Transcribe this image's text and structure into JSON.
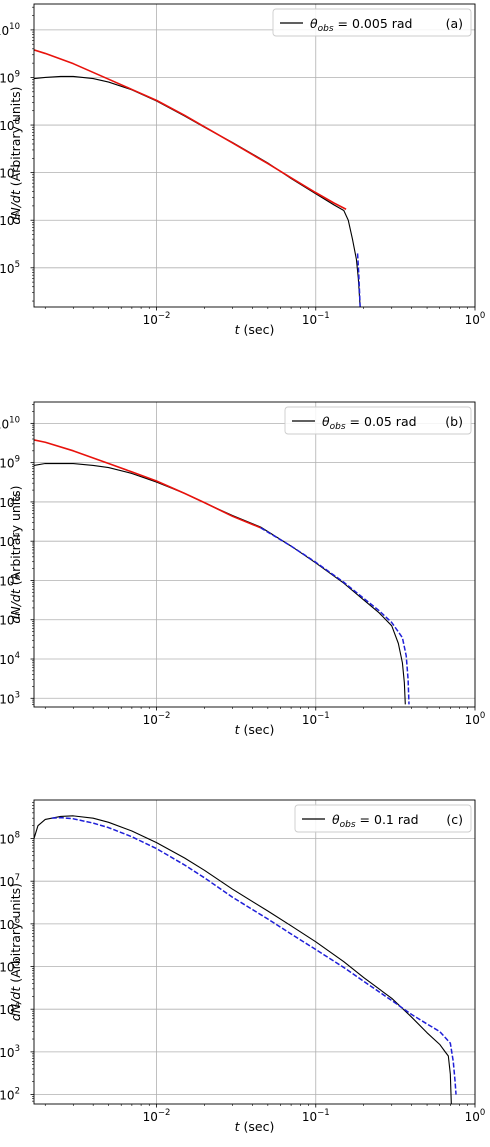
{
  "figure": {
    "panels": [
      {
        "legend_symbol": "θ",
        "legend_sub": "obs",
        "legend_value": " = 0.005 rad",
        "panel_label": "(a)"
      },
      {
        "legend_symbol": "θ",
        "legend_sub": "obs",
        "legend_value": " = 0.05 rad",
        "panel_label": "(b)"
      },
      {
        "legend_symbol": "θ",
        "legend_sub": "obs",
        "legend_value": " = 0.1 rad",
        "panel_label": "(c)"
      }
    ]
  },
  "chart_data": [
    {
      "type": "line",
      "panel": "(a)",
      "xlabel_var": "t",
      "xlabel_unit": " (sec)",
      "ylabel_var": "dN/dt",
      "ylabel_unit": " (Arbitrary units)",
      "xscale": "log",
      "yscale": "log",
      "xlim": [
        0.0017,
        1.0
      ],
      "ylim": [
        15000,
        35000000000.0
      ],
      "x_ticks": [
        {
          "value": 0.01,
          "base": "10",
          "exp": "−2"
        },
        {
          "value": 0.1,
          "base": "10",
          "exp": "−1"
        },
        {
          "value": 1.0,
          "base": "10",
          "exp": "0"
        }
      ],
      "y_ticks": [
        {
          "value": 100000.0,
          "base": "10",
          "exp": "5"
        },
        {
          "value": 1000000.0,
          "base": "10",
          "exp": "6"
        },
        {
          "value": 10000000.0,
          "base": "10",
          "exp": "7"
        },
        {
          "value": 100000000.0,
          "base": "10",
          "exp": "8"
        },
        {
          "value": 1000000000.0,
          "base": "10",
          "exp": "9"
        },
        {
          "value": 10000000000.0,
          "base": "10",
          "exp": "10"
        }
      ],
      "grid": true,
      "legend_position": "top-right",
      "series": [
        {
          "color": "#000000",
          "style": "solid",
          "x": [
            0.0017,
            0.002,
            0.0025,
            0.003,
            0.004,
            0.005,
            0.007,
            0.01,
            0.015,
            0.02,
            0.03,
            0.05,
            0.07,
            0.1,
            0.13,
            0.15,
            0.16,
            0.17,
            0.18,
            0.185,
            0.19
          ],
          "y": [
            950000000.0,
            1000000000.0,
            1050000000.0,
            1050000000.0,
            950000000.0,
            800000000.0,
            550000000.0,
            320000000.0,
            155000000.0,
            90000000.0,
            43000000.0,
            16000000.0,
            7500000.0,
            3600000.0,
            2100000.0,
            1600000.0,
            1000000.0,
            400000.0,
            150000.0,
            60000.0,
            15000.0
          ]
        },
        {
          "color": "#e8120c",
          "style": "solid",
          "x": [
            0.0017,
            0.002,
            0.003,
            0.005,
            0.007,
            0.01,
            0.015,
            0.02,
            0.03,
            0.05,
            0.07,
            0.1,
            0.13,
            0.155
          ],
          "y": [
            3800000000.0,
            3200000000.0,
            1950000000.0,
            920000000.0,
            560000000.0,
            330000000.0,
            160000000.0,
            92000000.0,
            42000000.0,
            15500000.0,
            7800000.0,
            3800000.0,
            2300000.0,
            1700000.0
          ]
        },
        {
          "color": "#1f1fd8",
          "style": "dashed",
          "x": [
            0.183,
            0.186,
            0.188,
            0.19
          ],
          "y": [
            200000.0,
            80000.0,
            35000.0,
            15000.0
          ]
        }
      ]
    },
    {
      "type": "line",
      "panel": "(b)",
      "xlabel_var": "t",
      "xlabel_unit": " (sec)",
      "ylabel_var": "dN/dt",
      "ylabel_unit": " (Arbitrary units)",
      "xscale": "log",
      "yscale": "log",
      "xlim": [
        0.0017,
        1.0
      ],
      "ylim": [
        600,
        35000000000.0
      ],
      "x_ticks": [
        {
          "value": 0.01,
          "base": "10",
          "exp": "−2"
        },
        {
          "value": 0.1,
          "base": "10",
          "exp": "−1"
        },
        {
          "value": 1.0,
          "base": "10",
          "exp": "0"
        }
      ],
      "y_ticks": [
        {
          "value": 1000.0,
          "base": "10",
          "exp": "3"
        },
        {
          "value": 10000.0,
          "base": "10",
          "exp": "4"
        },
        {
          "value": 100000.0,
          "base": "10",
          "exp": "5"
        },
        {
          "value": 1000000.0,
          "base": "10",
          "exp": "6"
        },
        {
          "value": 10000000.0,
          "base": "10",
          "exp": "7"
        },
        {
          "value": 100000000.0,
          "base": "10",
          "exp": "8"
        },
        {
          "value": 1000000000.0,
          "base": "10",
          "exp": "9"
        },
        {
          "value": 10000000000.0,
          "base": "10",
          "exp": "10"
        }
      ],
      "grid": true,
      "legend_position": "top-right",
      "series": [
        {
          "color": "#000000",
          "style": "solid",
          "x": [
            0.0017,
            0.002,
            0.003,
            0.004,
            0.005,
            0.007,
            0.01,
            0.015,
            0.02,
            0.03,
            0.045,
            0.07,
            0.1,
            0.15,
            0.2,
            0.25,
            0.3,
            0.33,
            0.35,
            0.36,
            0.365
          ],
          "y": [
            850000000.0,
            950000000.0,
            950000000.0,
            850000000.0,
            750000000.0,
            530000000.0,
            320000000.0,
            165000000.0,
            95000000.0,
            45000000.0,
            23000000.0,
            7500000.0,
            2800000.0,
            850000.0,
            320000.0,
            150000.0,
            70000.0,
            25000.0,
            8000.0,
            2500.0,
            700
          ]
        },
        {
          "color": "#e8120c",
          "style": "solid",
          "x": [
            0.0017,
            0.002,
            0.003,
            0.005,
            0.007,
            0.01,
            0.015,
            0.02,
            0.03,
            0.045
          ],
          "y": [
            3800000000.0,
            3300000000.0,
            2000000000.0,
            950000000.0,
            580000000.0,
            340000000.0,
            165000000.0,
            96000000.0,
            43000000.0,
            22000000.0
          ]
        },
        {
          "color": "#1f1fd8",
          "style": "dashed",
          "x": [
            0.045,
            0.07,
            0.1,
            0.15,
            0.2,
            0.25,
            0.3,
            0.35,
            0.37,
            0.38,
            0.385
          ],
          "y": [
            22000000.0,
            7500000.0,
            2900000.0,
            900000.0,
            350000.0,
            170000.0,
            85000.0,
            35000.0,
            12000.0,
            3000.0,
            700
          ]
        }
      ]
    },
    {
      "type": "line",
      "panel": "(c)",
      "xlabel_var": "t",
      "xlabel_unit": " (sec)",
      "ylabel_var": "dN/dt",
      "ylabel_unit": " (Arbitrary units)",
      "xscale": "log",
      "yscale": "log",
      "xlim": [
        0.0017,
        1.0
      ],
      "ylim": [
        60,
        800000000.0
      ],
      "x_ticks": [
        {
          "value": 0.01,
          "base": "10",
          "exp": "−2"
        },
        {
          "value": 0.1,
          "base": "10",
          "exp": "−1"
        },
        {
          "value": 1.0,
          "base": "10",
          "exp": "0"
        }
      ],
      "y_ticks": [
        {
          "value": 100.0,
          "base": "10",
          "exp": "2"
        },
        {
          "value": 1000.0,
          "base": "10",
          "exp": "3"
        },
        {
          "value": 10000.0,
          "base": "10",
          "exp": "4"
        },
        {
          "value": 100000.0,
          "base": "10",
          "exp": "5"
        },
        {
          "value": 1000000.0,
          "base": "10",
          "exp": "6"
        },
        {
          "value": 10000000.0,
          "base": "10",
          "exp": "7"
        },
        {
          "value": 100000000.0,
          "base": "10",
          "exp": "8"
        }
      ],
      "grid": true,
      "legend_position": "top-right",
      "series": [
        {
          "color": "#000000",
          "style": "solid",
          "x": [
            0.0017,
            0.0018,
            0.002,
            0.0025,
            0.003,
            0.004,
            0.005,
            0.007,
            0.01,
            0.015,
            0.02,
            0.03,
            0.05,
            0.07,
            0.1,
            0.15,
            0.2,
            0.3,
            0.4,
            0.5,
            0.6,
            0.65,
            0.68,
            0.7,
            0.71
          ],
          "y": [
            100000000.0,
            200000000.0,
            280000000.0,
            330000000.0,
            340000000.0,
            300000000.0,
            240000000.0,
            150000000.0,
            80000000.0,
            35000000.0,
            18000000.0,
            6500000.0,
            2000000.0,
            900000.0,
            380000.0,
            130000.0,
            55000.0,
            18000.0,
            6500.0,
            2800.0,
            1500.0,
            1000.0,
            800,
            300,
            60
          ]
        },
        {
          "color": "#1f1fd8",
          "style": "dashed",
          "x": [
            0.0022,
            0.0025,
            0.003,
            0.004,
            0.005,
            0.007,
            0.01,
            0.015,
            0.02,
            0.03,
            0.05,
            0.07,
            0.1,
            0.15,
            0.2,
            0.3,
            0.4,
            0.5,
            0.6,
            0.7,
            0.73,
            0.75,
            0.76
          ],
          "y": [
            300000000.0,
            310000000.0,
            290000000.0,
            230000000.0,
            180000000.0,
            110000000.0,
            58000000.0,
            24000000.0,
            12000000.0,
            4200000.0,
            1300000.0,
            580000.0,
            250000.0,
            95000.0,
            45000.0,
            16000.0,
            7500.0,
            4500.0,
            3000.0,
            1600.0,
            600,
            200,
            100
          ]
        }
      ]
    }
  ]
}
